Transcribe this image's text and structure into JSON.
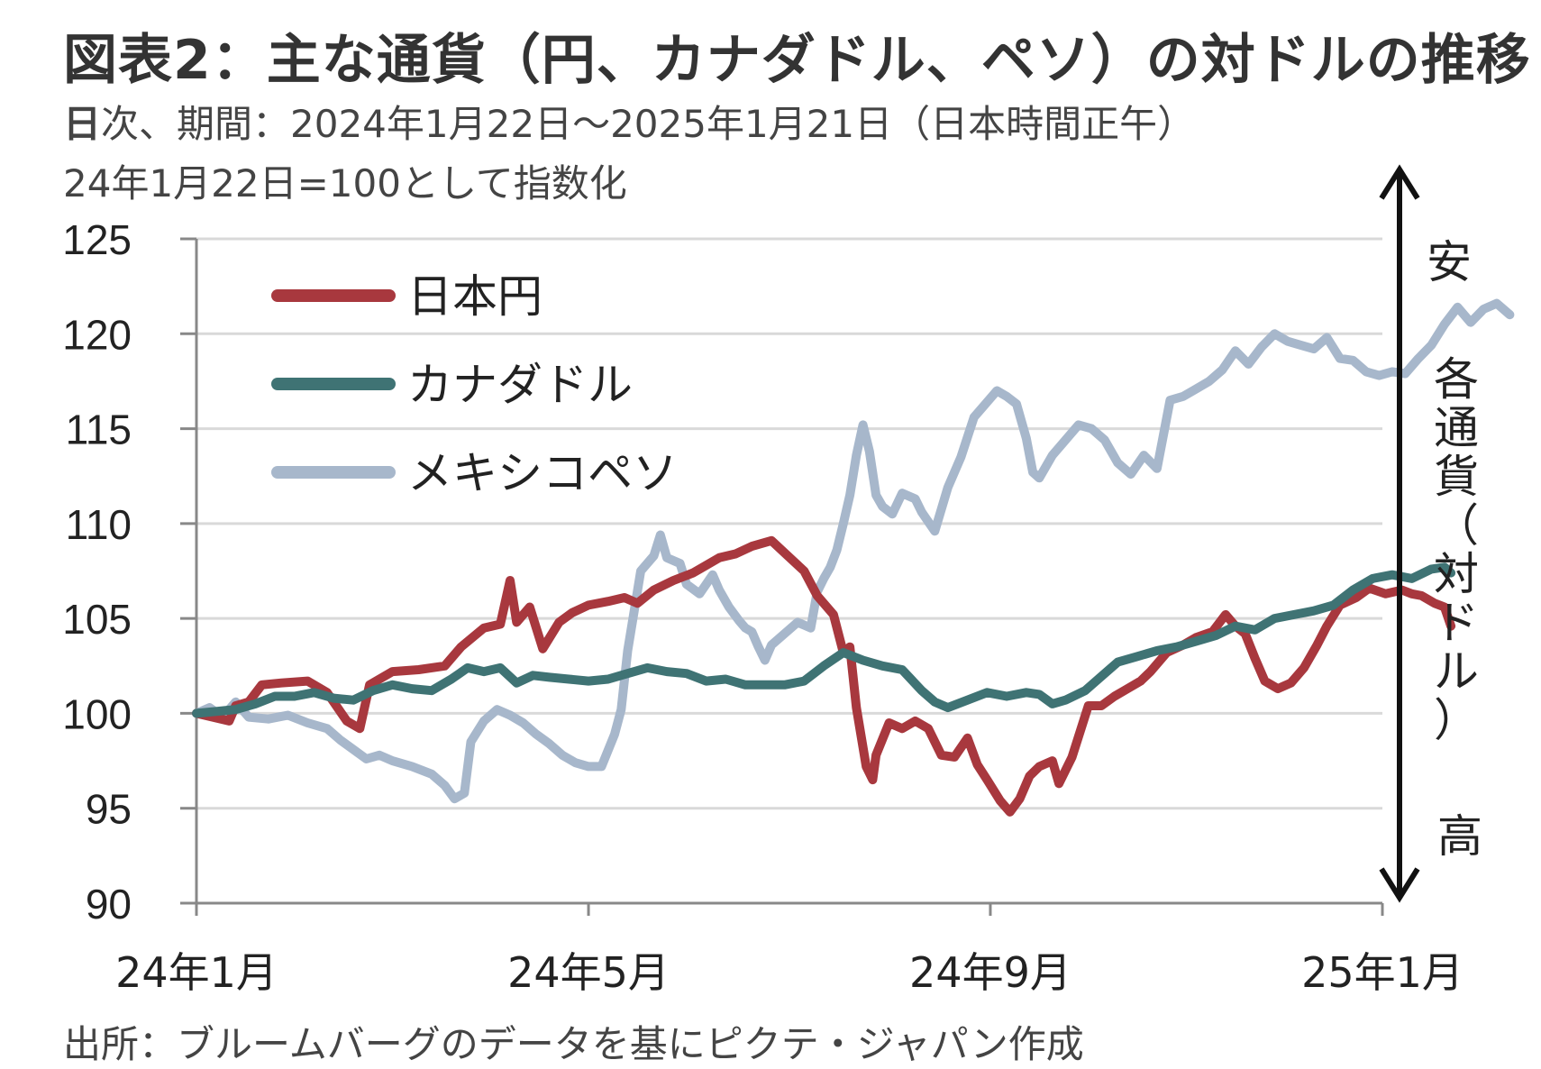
{
  "title": "図表2：主な通貨（円、カナダドル、ペソ）の対ドルの推移",
  "subtitle_bold": "日",
  "subtitle_rest": "次、期間：2024年1月22日～2025年1月21日（日本時間正午）",
  "note": "24年1月22日=100として指数化",
  "source": "出所：ブルームバーグのデータを基にピクテ・ジャパン作成",
  "side_label": {
    "top": "安",
    "middle": [
      "各",
      "通",
      "貨",
      "（",
      "対",
      "ド",
      "ル",
      "）"
    ],
    "bottom": "高"
  },
  "colors": {
    "jpy": "#a8383e",
    "cad": "#3f7374",
    "mxn": "#a7b7cb",
    "grid": "#d9d9d9",
    "axis": "#888888"
  },
  "chart_data": {
    "type": "line",
    "title": "図表2：主な通貨（円、カナダドル、ペソ）の対ドルの推移",
    "xlabel": "",
    "ylabel": "",
    "ylim": [
      90,
      125
    ],
    "yticks": [
      90,
      95,
      100,
      105,
      110,
      115,
      120,
      125
    ],
    "xlim": [
      0,
      363
    ],
    "xticks": [
      {
        "x": 0,
        "label": "24年1月"
      },
      {
        "x": 120,
        "label": "24年5月"
      },
      {
        "x": 243,
        "label": "24年9月"
      },
      {
        "x": 365,
        "label": "25年1月"
      }
    ],
    "grid": true,
    "legend_position": "top-left",
    "series": [
      {
        "name": "日本円",
        "color_key": "jpy",
        "points": [
          [
            0,
            100
          ],
          [
            5,
            99.8
          ],
          [
            10,
            99.6
          ],
          [
            12,
            100.4
          ],
          [
            16,
            100.6
          ],
          [
            20,
            101.5
          ],
          [
            26,
            101.6
          ],
          [
            34,
            101.7
          ],
          [
            40,
            101.1
          ],
          [
            46,
            99.6
          ],
          [
            50,
            99.2
          ],
          [
            53,
            101.5
          ],
          [
            60,
            102.2
          ],
          [
            68,
            102.3
          ],
          [
            76,
            102.5
          ],
          [
            81,
            103.5
          ],
          [
            88,
            104.5
          ],
          [
            93,
            104.7
          ],
          [
            96,
            107
          ],
          [
            98,
            104.8
          ],
          [
            102,
            105.6
          ],
          [
            106,
            103.4
          ],
          [
            111,
            104.8
          ],
          [
            115,
            105.3
          ],
          [
            120,
            105.7
          ],
          [
            126,
            105.9
          ],
          [
            131,
            106.1
          ],
          [
            135,
            105.8
          ],
          [
            140,
            106.5
          ],
          [
            146,
            107
          ],
          [
            152,
            107.4
          ],
          [
            160,
            108.2
          ],
          [
            165,
            108.4
          ],
          [
            170,
            108.8
          ],
          [
            176,
            109.1
          ],
          [
            181,
            108.3
          ],
          [
            186,
            107.5
          ],
          [
            190,
            106.2
          ],
          [
            195,
            105.2
          ],
          [
            198,
            103.2
          ],
          [
            200,
            103.5
          ],
          [
            202,
            100.3
          ],
          [
            205,
            97.2
          ],
          [
            207,
            96.5
          ],
          [
            208,
            97.8
          ],
          [
            212,
            99.5
          ],
          [
            216,
            99.2
          ],
          [
            220,
            99.6
          ],
          [
            224,
            99.2
          ],
          [
            228,
            97.8
          ],
          [
            232,
            97.7
          ],
          [
            236,
            98.7
          ],
          [
            239,
            97.3
          ],
          [
            242,
            96.5
          ],
          [
            246,
            95.4
          ],
          [
            249,
            94.8
          ],
          [
            252,
            95.5
          ],
          [
            255,
            96.7
          ],
          [
            258,
            97.2
          ],
          [
            262,
            97.5
          ],
          [
            264,
            96.3
          ],
          [
            268,
            97.7
          ],
          [
            273,
            100.4
          ],
          [
            277,
            100.4
          ],
          [
            281,
            100.9
          ],
          [
            285,
            101.3
          ],
          [
            289,
            101.7
          ],
          [
            292,
            102.2
          ],
          [
            297,
            103.2
          ],
          [
            302,
            103.6
          ],
          [
            306,
            104
          ],
          [
            311,
            104.3
          ],
          [
            315,
            105.2
          ],
          [
            318,
            104.6
          ],
          [
            321,
            104.2
          ],
          [
            324,
            102.9
          ],
          [
            327,
            101.7
          ],
          [
            331,
            101.3
          ],
          [
            335,
            101.6
          ],
          [
            339,
            102.4
          ],
          [
            343,
            103.6
          ],
          [
            346,
            104.6
          ],
          [
            350,
            105.7
          ],
          [
            355,
            106.1
          ],
          [
            359,
            106.6
          ],
          [
            364,
            106.3
          ],
          [
            369,
            106.5
          ],
          [
            372,
            106.3
          ],
          [
            375,
            106.2
          ],
          [
            379,
            105.8
          ],
          [
            382,
            105.6
          ],
          [
            384,
            104.6
          ]
        ]
      },
      {
        "name": "カナダドル",
        "color_key": "cad",
        "points": [
          [
            0,
            100
          ],
          [
            6,
            100.1
          ],
          [
            12,
            100.2
          ],
          [
            18,
            100.5
          ],
          [
            24,
            100.9
          ],
          [
            30,
            100.9
          ],
          [
            36,
            101.1
          ],
          [
            42,
            100.8
          ],
          [
            48,
            100.7
          ],
          [
            54,
            101.2
          ],
          [
            60,
            101.5
          ],
          [
            66,
            101.3
          ],
          [
            72,
            101.2
          ],
          [
            78,
            101.8
          ],
          [
            83,
            102.4
          ],
          [
            88,
            102.2
          ],
          [
            93,
            102.4
          ],
          [
            98,
            101.6
          ],
          [
            103,
            102
          ],
          [
            108,
            101.9
          ],
          [
            114,
            101.8
          ],
          [
            120,
            101.7
          ],
          [
            126,
            101.8
          ],
          [
            132,
            102.1
          ],
          [
            138,
            102.4
          ],
          [
            144,
            102.2
          ],
          [
            150,
            102.1
          ],
          [
            156,
            101.7
          ],
          [
            162,
            101.8
          ],
          [
            168,
            101.5
          ],
          [
            174,
            101.5
          ],
          [
            180,
            101.5
          ],
          [
            186,
            101.7
          ],
          [
            192,
            102.5
          ],
          [
            198,
            103.2
          ],
          [
            204,
            102.8
          ],
          [
            210,
            102.5
          ],
          [
            216,
            102.3
          ],
          [
            222,
            101.2
          ],
          [
            226,
            100.6
          ],
          [
            230,
            100.3
          ],
          [
            236,
            100.7
          ],
          [
            242,
            101.1
          ],
          [
            248,
            100.9
          ],
          [
            254,
            101.1
          ],
          [
            258,
            101
          ],
          [
            262,
            100.5
          ],
          [
            266,
            100.7
          ],
          [
            272,
            101.2
          ],
          [
            278,
            102.1
          ],
          [
            282,
            102.7
          ],
          [
            288,
            103
          ],
          [
            294,
            103.3
          ],
          [
            300,
            103.5
          ],
          [
            306,
            103.8
          ],
          [
            312,
            104.1
          ],
          [
            318,
            104.6
          ],
          [
            324,
            104.4
          ],
          [
            330,
            105
          ],
          [
            336,
            105.2
          ],
          [
            342,
            105.4
          ],
          [
            348,
            105.7
          ],
          [
            354,
            106.5
          ],
          [
            360,
            107.1
          ],
          [
            366,
            107.3
          ],
          [
            372,
            107.1
          ],
          [
            378,
            107.6
          ],
          [
            382,
            107.7
          ],
          [
            384,
            107.4
          ]
        ]
      },
      {
        "name": "メキシコペソ",
        "color_key": "mxn",
        "points": [
          [
            0,
            100
          ],
          [
            4,
            100.3
          ],
          [
            8,
            99.8
          ],
          [
            12,
            100.6
          ],
          [
            16,
            99.8
          ],
          [
            22,
            99.7
          ],
          [
            28,
            99.9
          ],
          [
            34,
            99.5
          ],
          [
            40,
            99.2
          ],
          [
            44,
            98.6
          ],
          [
            48,
            98.1
          ],
          [
            52,
            97.6
          ],
          [
            56,
            97.8
          ],
          [
            60,
            97.5
          ],
          [
            66,
            97.2
          ],
          [
            72,
            96.8
          ],
          [
            76,
            96.2
          ],
          [
            79,
            95.5
          ],
          [
            82,
            95.8
          ],
          [
            84,
            98.5
          ],
          [
            88,
            99.6
          ],
          [
            92,
            100.2
          ],
          [
            96,
            99.9
          ],
          [
            100,
            99.5
          ],
          [
            104,
            98.9
          ],
          [
            108,
            98.4
          ],
          [
            112,
            97.8
          ],
          [
            116,
            97.4
          ],
          [
            120,
            97.2
          ],
          [
            124,
            97.2
          ],
          [
            128,
            98.9
          ],
          [
            130,
            100.2
          ],
          [
            132,
            103.3
          ],
          [
            136,
            107.5
          ],
          [
            140,
            108.3
          ],
          [
            142,
            109.4
          ],
          [
            144,
            108.2
          ],
          [
            148,
            107.9
          ],
          [
            150,
            106.8
          ],
          [
            154,
            106.3
          ],
          [
            158,
            107.3
          ],
          [
            160,
            106.5
          ],
          [
            163,
            105.6
          ],
          [
            166,
            104.9
          ],
          [
            168,
            104.5
          ],
          [
            170,
            104.3
          ],
          [
            172,
            103.5
          ],
          [
            174,
            102.8
          ],
          [
            176,
            103.6
          ],
          [
            180,
            104.2
          ],
          [
            184,
            104.8
          ],
          [
            188,
            104.5
          ],
          [
            190,
            106.4
          ],
          [
            192,
            107.1
          ],
          [
            194,
            107.7
          ],
          [
            196,
            108.6
          ],
          [
            198,
            110
          ],
          [
            200,
            111.5
          ],
          [
            202,
            113.6
          ],
          [
            204,
            115.2
          ],
          [
            206,
            113.8
          ],
          [
            208,
            111.5
          ],
          [
            210,
            110.9
          ],
          [
            213,
            110.5
          ],
          [
            216,
            111.6
          ],
          [
            220,
            111.3
          ],
          [
            222,
            110.6
          ],
          [
            226,
            109.6
          ],
          [
            230,
            111.9
          ],
          [
            234,
            113.5
          ],
          [
            238,
            115.6
          ],
          [
            242,
            116.4
          ],
          [
            245,
            117
          ],
          [
            248,
            116.7
          ],
          [
            251,
            116.3
          ],
          [
            254,
            114.5
          ],
          [
            256,
            112.7
          ],
          [
            258,
            112.4
          ],
          [
            262,
            113.6
          ],
          [
            266,
            114.4
          ],
          [
            270,
            115.2
          ],
          [
            274,
            115
          ],
          [
            278,
            114.4
          ],
          [
            282,
            113.2
          ],
          [
            286,
            112.6
          ],
          [
            290,
            113.6
          ],
          [
            294,
            112.9
          ],
          [
            298,
            116.5
          ],
          [
            302,
            116.7
          ],
          [
            306,
            117.1
          ],
          [
            310,
            117.5
          ],
          [
            314,
            118.1
          ],
          [
            318,
            119.1
          ],
          [
            322,
            118.4
          ],
          [
            326,
            119.3
          ],
          [
            330,
            120
          ],
          [
            334,
            119.6
          ],
          [
            338,
            119.4
          ],
          [
            342,
            119.2
          ],
          [
            346,
            119.8
          ],
          [
            350,
            118.7
          ],
          [
            354,
            118.6
          ],
          [
            358,
            118
          ],
          [
            362,
            117.8
          ],
          [
            366,
            118
          ],
          [
            370,
            117.9
          ],
          [
            374,
            118.7
          ],
          [
            378,
            119.4
          ],
          [
            382,
            120.5
          ],
          [
            386,
            121.4
          ],
          [
            390,
            120.6
          ],
          [
            394,
            121.3
          ],
          [
            398,
            121.6
          ],
          [
            402,
            121
          ]
        ]
      }
    ]
  }
}
